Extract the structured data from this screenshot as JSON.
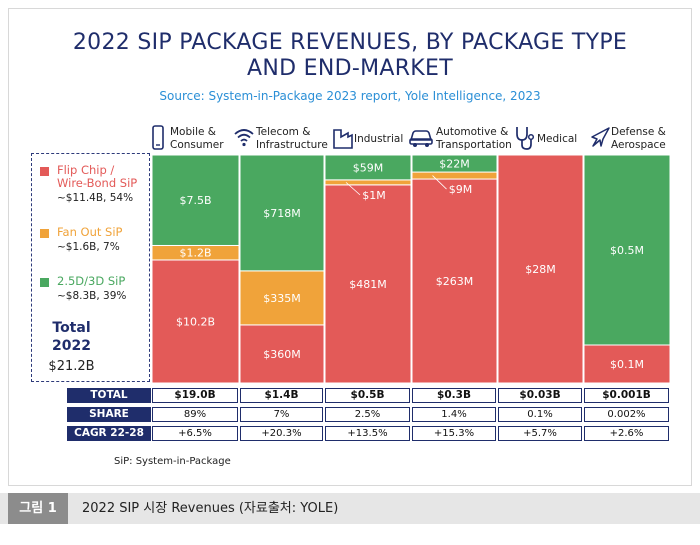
{
  "chart_data": {
    "type": "bar",
    "title": "2022 SIP PACKAGE REVENUES, BY PACKAGE TYPE",
    "title_line2": "AND END-MARKET",
    "subtitle": "Source: System-in-Package 2023 report, Yole Intelligence, 2023",
    "stacked": "100%",
    "categories": [
      "Mobile & Consumer",
      "Telecom & Infrastructure",
      "Industrial",
      "Automotive & Transportation",
      "Medical",
      "Defense & Aerospace"
    ],
    "category_lines": [
      [
        "Mobile &",
        "Consumer"
      ],
      [
        "Telecom &",
        "Infrastructure"
      ],
      [
        "Industrial"
      ],
      [
        "Automotive &",
        "Transportation"
      ],
      [
        "Medical"
      ],
      [
        "Defense &",
        "Aerospace"
      ]
    ],
    "series": [
      {
        "name": "Flip Chip / Wire-Bond SiP",
        "color": "#e35a58",
        "values": [
          10.2,
          360,
          481,
          263,
          28,
          0.1
        ],
        "labels": [
          "$10.2B",
          "$360M",
          "$481M",
          "$263M",
          "$28M",
          "$0.1M"
        ]
      },
      {
        "name": "Fan Out SiP",
        "color": "#f0a33a",
        "values": [
          1.2,
          335,
          1,
          9,
          0,
          0
        ],
        "labels": [
          "$1.2B",
          "$335M",
          "$1M",
          "$9M",
          "",
          ""
        ]
      },
      {
        "name": "2.5D/3D SiP",
        "color": "#4aa860",
        "values": [
          7.5,
          718,
          59,
          22,
          0,
          0.5
        ],
        "labels": [
          "$7.5B",
          "$718M",
          "$59M",
          "$22M",
          "",
          "$0.5M"
        ]
      }
    ],
    "legend": [
      {
        "name_lines": [
          "Flip Chip /",
          "Wire-Bond SiP"
        ],
        "value": "~$11.4B, 54%",
        "color": "#e35a58"
      },
      {
        "name_lines": [
          "Fan Out SiP"
        ],
        "value": "~$1.6B, 7%",
        "color": "#f0a33a"
      },
      {
        "name_lines": [
          "2.5D/3D SiP"
        ],
        "value": "~$8.3B, 39%",
        "color": "#4aa860"
      }
    ],
    "legend_placement": "left",
    "grand_total": {
      "label_lines": [
        "Total",
        "2022"
      ],
      "value": "$21.2B"
    },
    "table": {
      "rows": [
        {
          "header": "TOTAL",
          "bold": true,
          "values": [
            "$19.0B",
            "$1.4B",
            "$0.5B",
            "$0.3B",
            "$0.03B",
            "$0.001B"
          ]
        },
        {
          "header": "SHARE",
          "bold": false,
          "values": [
            "89%",
            "7%",
            "2.5%",
            "1.4%",
            "0.1%",
            "0.002%"
          ]
        },
        {
          "header": "CAGR 22-28",
          "bold": false,
          "values": [
            "+6.5%",
            "+20.3%",
            "+13.5%",
            "+15.3%",
            "+5.7%",
            "+2.6%"
          ]
        }
      ]
    },
    "footnote": "SiP: System-in-Package"
  },
  "caption": {
    "label": "그림 1",
    "text": "2022 SIP 시장 Revenues (자료출처: YOLE)"
  },
  "colors": {
    "navy": "#1f2d6b",
    "source_blue": "#2b8fd6"
  },
  "icons": [
    "phone-icon",
    "wifi-icon",
    "factory-icon",
    "car-icon",
    "stethoscope-icon",
    "jet-icon"
  ]
}
